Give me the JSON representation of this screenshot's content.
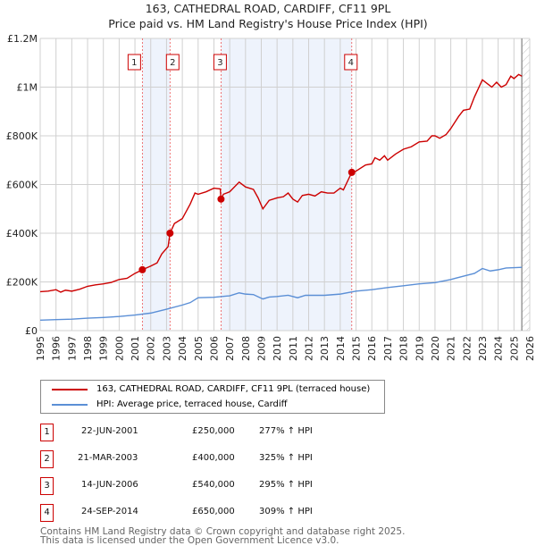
{
  "chart_data": {
    "type": "line",
    "title": "163, CATHEDRAL ROAD, CARDIFF, CF11 9PL",
    "subtitle": "Price paid vs. HM Land Registry's House Price Index (HPI)",
    "xlim": [
      1995,
      2026
    ],
    "ylim": [
      0,
      1200000
    ],
    "x_ticks": [
      "1995",
      "1996",
      "1997",
      "1998",
      "1999",
      "2000",
      "2001",
      "2002",
      "2003",
      "2004",
      "2005",
      "2006",
      "2007",
      "2008",
      "2009",
      "2010",
      "2011",
      "2012",
      "2013",
      "2014",
      "2015",
      "2016",
      "2017",
      "2018",
      "2019",
      "2020",
      "2021",
      "2022",
      "2023",
      "2024",
      "2025",
      "2026"
    ],
    "y_ticks": [
      {
        "v": 0,
        "label": "£0"
      },
      {
        "v": 200000,
        "label": "£200K"
      },
      {
        "v": 400000,
        "label": "£400K"
      },
      {
        "v": 600000,
        "label": "£600K"
      },
      {
        "v": 800000,
        "label": "£800K"
      },
      {
        "v": 1000000,
        "label": "£1M"
      },
      {
        "v": 1200000,
        "label": "£1.2M"
      }
    ],
    "grid": true,
    "forecast_start": 2025.5,
    "shaded_ranges": [
      [
        2001.47,
        2003.22
      ],
      [
        2006.45,
        2014.73
      ]
    ],
    "series": [
      {
        "name": "163, CATHEDRAL ROAD, CARDIFF, CF11 9PL (terraced house)",
        "color": "#cc0000",
        "points": [
          [
            1995,
            160000
          ],
          [
            1995.5,
            162000
          ],
          [
            1996,
            168000
          ],
          [
            1996.3,
            158000
          ],
          [
            1996.6,
            166000
          ],
          [
            1997,
            162000
          ],
          [
            1997.5,
            170000
          ],
          [
            1998,
            182000
          ],
          [
            1998.5,
            188000
          ],
          [
            1999,
            192000
          ],
          [
            1999.5,
            198000
          ],
          [
            2000,
            210000
          ],
          [
            2000.5,
            215000
          ],
          [
            2001,
            235000
          ],
          [
            2001.47,
            250000
          ],
          [
            2002,
            265000
          ],
          [
            2002.4,
            278000
          ],
          [
            2002.7,
            315000
          ],
          [
            2003.1,
            345000
          ],
          [
            2003.22,
            400000
          ],
          [
            2003.5,
            440000
          ],
          [
            2004,
            460000
          ],
          [
            2004.5,
            520000
          ],
          [
            2004.8,
            565000
          ],
          [
            2005,
            560000
          ],
          [
            2005.5,
            570000
          ],
          [
            2006,
            585000
          ],
          [
            2006.4,
            582000
          ],
          [
            2006.45,
            540000
          ],
          [
            2006.6,
            560000
          ],
          [
            2007,
            570000
          ],
          [
            2007.6,
            610000
          ],
          [
            2008,
            590000
          ],
          [
            2008.5,
            580000
          ],
          [
            2008.8,
            545000
          ],
          [
            2009.1,
            500000
          ],
          [
            2009.5,
            535000
          ],
          [
            2010,
            545000
          ],
          [
            2010.4,
            550000
          ],
          [
            2010.7,
            565000
          ],
          [
            2011,
            540000
          ],
          [
            2011.3,
            528000
          ],
          [
            2011.6,
            555000
          ],
          [
            2012,
            560000
          ],
          [
            2012.4,
            553000
          ],
          [
            2012.8,
            570000
          ],
          [
            2013.2,
            565000
          ],
          [
            2013.6,
            565000
          ],
          [
            2014,
            585000
          ],
          [
            2014.2,
            578000
          ],
          [
            2014.73,
            650000
          ],
          [
            2015,
            655000
          ],
          [
            2015.6,
            680000
          ],
          [
            2016,
            685000
          ],
          [
            2016.2,
            710000
          ],
          [
            2016.5,
            700000
          ],
          [
            2016.8,
            718000
          ],
          [
            2017,
            700000
          ],
          [
            2017.5,
            725000
          ],
          [
            2018,
            745000
          ],
          [
            2018.5,
            755000
          ],
          [
            2019,
            775000
          ],
          [
            2019.5,
            778000
          ],
          [
            2019.8,
            800000
          ],
          [
            2020,
            800000
          ],
          [
            2020.3,
            790000
          ],
          [
            2020.7,
            805000
          ],
          [
            2021,
            830000
          ],
          [
            2021.5,
            880000
          ],
          [
            2021.8,
            905000
          ],
          [
            2022.2,
            910000
          ],
          [
            2022.5,
            960000
          ],
          [
            2023,
            1030000
          ],
          [
            2023.4,
            1010000
          ],
          [
            2023.6,
            1000000
          ],
          [
            2023.9,
            1020000
          ],
          [
            2024.2,
            1000000
          ],
          [
            2024.5,
            1010000
          ],
          [
            2024.8,
            1045000
          ],
          [
            2025,
            1035000
          ],
          [
            2025.3,
            1052000
          ],
          [
            2025.5,
            1045000
          ]
        ]
      },
      {
        "name": "HPI: Average price, terraced house, Cardiff",
        "color": "#5b8fd6",
        "points": [
          [
            1995,
            43000
          ],
          [
            1996,
            45000
          ],
          [
            1997,
            47000
          ],
          [
            1998,
            51000
          ],
          [
            1999,
            54000
          ],
          [
            2000,
            58000
          ],
          [
            2001,
            64000
          ],
          [
            2002,
            72000
          ],
          [
            2003,
            88000
          ],
          [
            2004,
            105000
          ],
          [
            2004.5,
            115000
          ],
          [
            2005,
            135000
          ],
          [
            2006,
            137000
          ],
          [
            2007,
            143000
          ],
          [
            2007.6,
            155000
          ],
          [
            2008,
            150000
          ],
          [
            2008.5,
            148000
          ],
          [
            2009.1,
            130000
          ],
          [
            2009.5,
            138000
          ],
          [
            2010,
            140000
          ],
          [
            2010.7,
            145000
          ],
          [
            2011.3,
            135000
          ],
          [
            2011.8,
            145000
          ],
          [
            2013,
            145000
          ],
          [
            2014,
            150000
          ],
          [
            2015,
            162000
          ],
          [
            2016,
            168000
          ],
          [
            2017,
            177000
          ],
          [
            2018,
            184000
          ],
          [
            2019,
            192000
          ],
          [
            2020,
            197000
          ],
          [
            2021,
            210000
          ],
          [
            2022,
            227000
          ],
          [
            2022.5,
            235000
          ],
          [
            2023,
            255000
          ],
          [
            2023.5,
            245000
          ],
          [
            2024,
            250000
          ],
          [
            2024.5,
            257000
          ],
          [
            2025.5,
            260000
          ]
        ]
      }
    ],
    "sales": [
      {
        "id": "1",
        "x": 2001.47,
        "price": 250000,
        "date": "22-JUN-2001",
        "price_label": "£250,000",
        "hpi": "277% ↑ HPI"
      },
      {
        "id": "2",
        "x": 2003.22,
        "price": 400000,
        "date": "21-MAR-2003",
        "price_label": "£400,000",
        "hpi": "325% ↑ HPI"
      },
      {
        "id": "3",
        "x": 2006.45,
        "price": 540000,
        "date": "14-JUN-2006",
        "price_label": "£540,000",
        "hpi": "295% ↑ HPI"
      },
      {
        "id": "4",
        "x": 2014.73,
        "price": 650000,
        "date": "24-SEP-2014",
        "price_label": "£650,000",
        "hpi": "309% ↑ HPI"
      }
    ]
  },
  "legend": {
    "red": "163, CATHEDRAL ROAD, CARDIFF, CF11 9PL (terraced house)",
    "blue": "HPI: Average price, terraced house, Cardiff"
  },
  "footer": [
    "Contains HM Land Registry data © Crown copyright and database right 2025.",
    "This data is licensed under the Open Government Licence v3.0."
  ]
}
